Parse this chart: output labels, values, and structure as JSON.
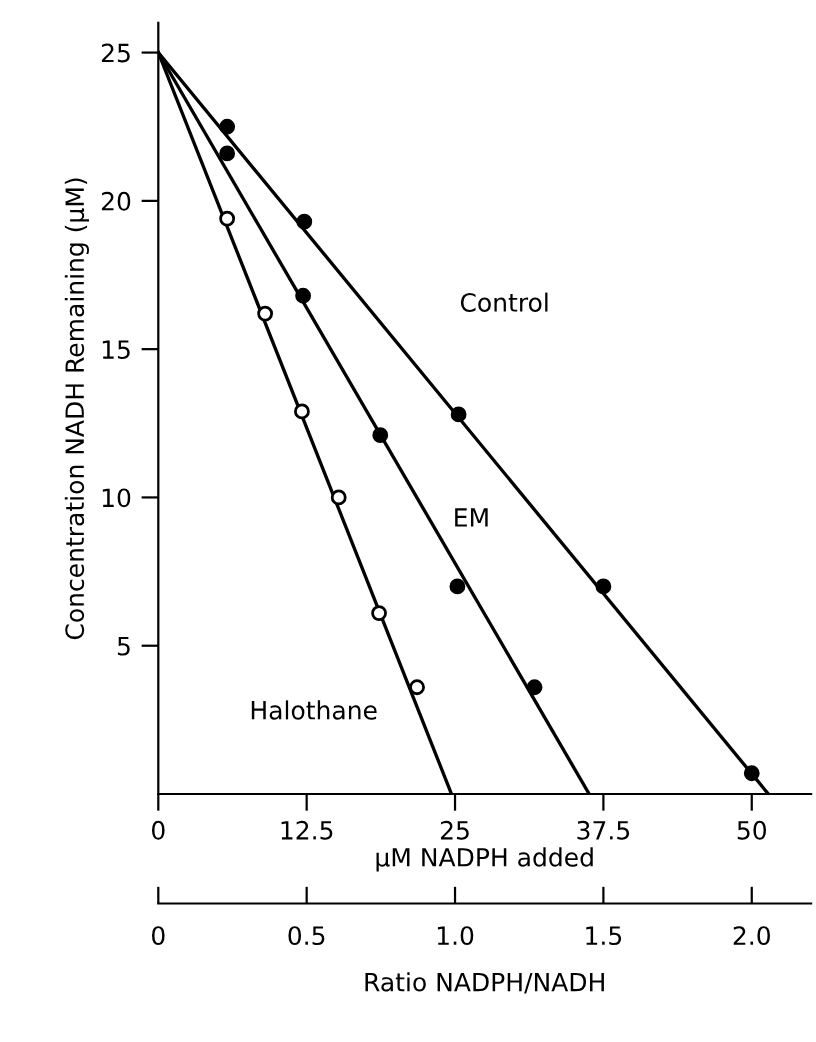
{
  "chart_data": {
    "type": "line",
    "xlabel": "μM NADPH added",
    "ylabel": "Concentration NADH Remaining (μM)",
    "x2label": "Ratio NADPH/NADH",
    "xlim": [
      0,
      55
    ],
    "xticks": [
      0,
      12.5,
      25,
      37.5,
      50
    ],
    "ylim": [
      0,
      26
    ],
    "yticks": [
      5,
      10,
      15,
      20,
      25
    ],
    "x2lim": [
      0,
      2.2
    ],
    "x2ticks": [
      0,
      0.5,
      {
        "value": 1,
        "label": "1.0"
      },
      1.5,
      {
        "value": 2,
        "label": "2.0"
      }
    ],
    "grid": false,
    "legend": false,
    "series": [
      {
        "name": "Control",
        "color": "#000000",
        "marker": "none",
        "x": [
          0,
          51.4
        ],
        "values": [
          25,
          0
        ]
      },
      {
        "name": "EM",
        "color": "#000000",
        "marker": "none",
        "x": [
          0,
          36.3
        ],
        "values": [
          25,
          0
        ]
      },
      {
        "name": "Halothane",
        "color": "#000000",
        "marker": "none",
        "x": [
          0,
          24.7
        ],
        "values": [
          25,
          0
        ]
      },
      {
        "type": "scatter",
        "color": "#000000",
        "marker": "circle",
        "x": [
          5.8,
          12.3,
          25.3,
          37.5,
          50
        ],
        "values": [
          22.5,
          19.3,
          12.8,
          7.0,
          0.7
        ]
      },
      {
        "type": "scatter",
        "color": "#000000",
        "marker": "circle",
        "x": [
          5.8,
          12.2,
          18.7,
          25.2,
          31.7
        ],
        "values": [
          21.6,
          16.8,
          12.1,
          7.0,
          3.6
        ]
      },
      {
        "type": "scatter",
        "color": "#ffffff",
        "marker": "circle",
        "x": [
          5.8,
          9.0,
          12.1,
          15.2,
          18.6,
          21.8
        ],
        "values": [
          19.4,
          16.2,
          12.9,
          10.0,
          6.1,
          3.6
        ]
      }
    ]
  }
}
